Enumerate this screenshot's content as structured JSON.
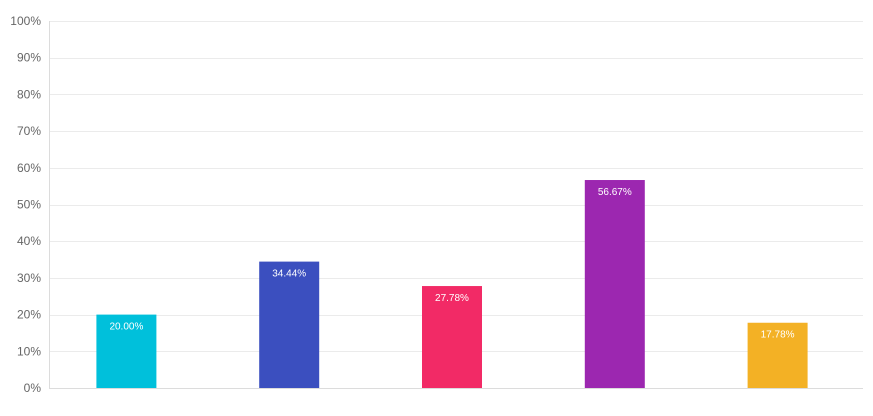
{
  "chart_data": {
    "type": "bar",
    "title": "",
    "xlabel": "",
    "ylabel": "",
    "ylim": [
      0,
      100
    ],
    "y_ticks": [
      "0%",
      "10%",
      "20%",
      "30%",
      "40%",
      "50%",
      "60%",
      "70%",
      "80%",
      "90%",
      "100%"
    ],
    "grid": true,
    "legend": "none",
    "values": [
      20.0,
      34.44,
      27.78,
      56.67,
      17.78
    ],
    "value_labels": [
      "20.00%",
      "34.44%",
      "27.78%",
      "56.67%",
      "17.78%"
    ],
    "colors": [
      "#00c0db",
      "#3b4fbf",
      "#f22a66",
      "#9c27b0",
      "#f3b125"
    ]
  },
  "colors": {
    "grid": "#ebebeb",
    "axis": "#dcdcdc",
    "tick_text": "#666666",
    "label_text": "#ffffff"
  }
}
